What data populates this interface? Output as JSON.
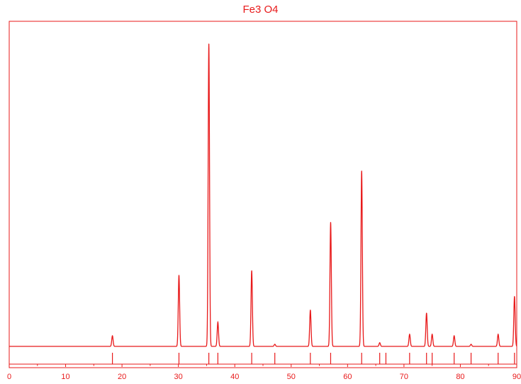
{
  "chart_data": {
    "type": "line",
    "title": "Fe3 O4",
    "xlabel": "",
    "ylabel": "",
    "xlim": [
      0,
      90
    ],
    "ylim": [
      0,
      100
    ],
    "grid": false,
    "color": "#e8191a",
    "x_ticks": [
      0,
      10,
      20,
      30,
      40,
      50,
      60,
      70,
      80,
      90
    ],
    "reference_lines": [
      18.3,
      30.1,
      35.4,
      37.0,
      43.0,
      47.1,
      53.4,
      57.0,
      62.5,
      65.7,
      66.8,
      71.0,
      74.0,
      75.0,
      78.9,
      81.9,
      86.7,
      89.6
    ],
    "peaks": [
      {
        "x": 18.3,
        "y": 3.5
      },
      {
        "x": 30.1,
        "y": 23.5
      },
      {
        "x": 35.4,
        "y": 100
      },
      {
        "x": 37.0,
        "y": 8.0
      },
      {
        "x": 43.0,
        "y": 25.0
      },
      {
        "x": 47.1,
        "y": 0.7
      },
      {
        "x": 53.4,
        "y": 12.0
      },
      {
        "x": 57.0,
        "y": 41.0
      },
      {
        "x": 62.5,
        "y": 58.0
      },
      {
        "x": 65.7,
        "y": 1.2
      },
      {
        "x": 71.0,
        "y": 4.0
      },
      {
        "x": 74.0,
        "y": 11.0
      },
      {
        "x": 75.0,
        "y": 4.0
      },
      {
        "x": 78.9,
        "y": 3.5
      },
      {
        "x": 81.9,
        "y": 0.7
      },
      {
        "x": 86.7,
        "y": 4.0
      },
      {
        "x": 89.6,
        "y": 16.5
      }
    ]
  }
}
